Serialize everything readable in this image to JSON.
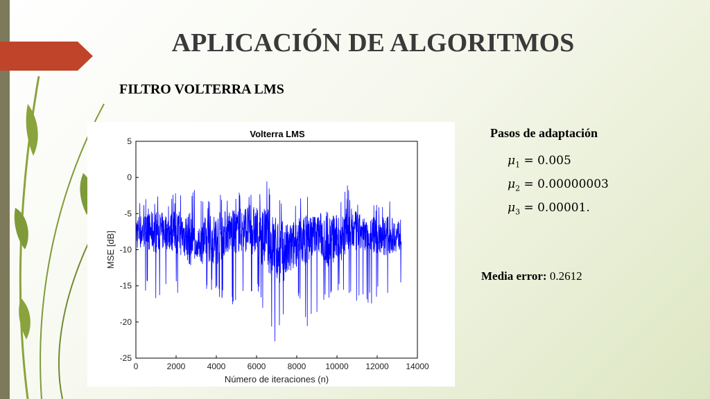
{
  "slide": {
    "title": "APLICACIÓN DE ALGORITMOS",
    "subtitle": "FILTRO VOLTERRA LMS",
    "params": {
      "title": "Pasos de adaptación",
      "items": [
        {
          "symbol": "μ",
          "sub": "1",
          "value": "= 0.005"
        },
        {
          "symbol": "μ",
          "sub": "2",
          "value": "= 0.00000003"
        },
        {
          "symbol": "μ",
          "sub": "3",
          "value": "= 0.00001."
        }
      ]
    },
    "media_error": {
      "label": "Media error:",
      "value": "0.2612"
    },
    "colors": {
      "accent": "#c0442a",
      "left_bar": "#7c7a5a",
      "series": "#0000ff",
      "leaf": "#8aa33c"
    }
  },
  "chart_data": {
    "type": "line",
    "title": "Volterra LMS",
    "xlabel": "Número de iteraciones (n)",
    "ylabel": "MSE [dB]",
    "xlim": [
      0,
      14000
    ],
    "ylim": [
      -25,
      5
    ],
    "xticks": [
      "0",
      "2000",
      "4000",
      "6000",
      "8000",
      "10000",
      "12000",
      "14000"
    ],
    "yticks": [
      "5",
      "0",
      "-5",
      "-10",
      "-15",
      "-20",
      "-25"
    ],
    "grid": false,
    "series": [
      {
        "color": "#0000ff",
        "x": [
          0,
          500,
          1000,
          1500,
          2000,
          2500,
          3000,
          3500,
          4000,
          4500,
          5000,
          5500,
          6000,
          6500,
          7000,
          7500,
          8000,
          8500,
          9000,
          9500,
          10000,
          10500,
          11000,
          11500,
          12000,
          12500,
          13000,
          13200
        ],
        "y_min": [
          -20,
          -16,
          -17,
          -15,
          -16,
          -18,
          -12,
          -16,
          -16,
          -18,
          -18,
          -16,
          -16,
          -20,
          -23.5,
          -18,
          -17,
          -21,
          -19,
          -17,
          -16,
          -17,
          -18,
          -18,
          -17,
          -16,
          -17,
          -16
        ],
        "y_max": [
          -3,
          -3,
          -2,
          -3,
          -2,
          -2,
          -1,
          -3,
          -1.5,
          -2,
          -2,
          -1,
          -1,
          -0.5,
          -1.5,
          -3,
          -3,
          -2,
          -3,
          -1,
          -2.5,
          -1,
          -2.5,
          -4,
          -3,
          -3,
          -4,
          -4
        ],
        "y_center": [
          -7.5,
          -7.5,
          -7.5,
          -7.5,
          -7.5,
          -8,
          -9.5,
          -8.5,
          -8.5,
          -7.5,
          -7.5,
          -7,
          -7.5,
          -8.5,
          -10,
          -10.5,
          -9,
          -8.5,
          -7.5,
          -8.5,
          -8.5,
          -7.5,
          -7.5,
          -8,
          -8,
          -8,
          -8,
          -8
        ]
      }
    ]
  }
}
